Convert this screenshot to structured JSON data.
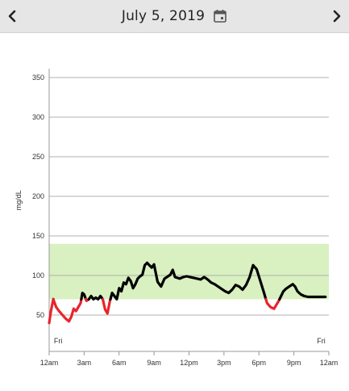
{
  "header": {
    "date": "July 5, 2019",
    "prev_icon": "chevron-left-icon",
    "next_icon": "chevron-right-icon",
    "calendar_icon": "calendar-icon"
  },
  "colors": {
    "header_bg": "#e6e6e6",
    "target_band": "#d9f0c0",
    "line_normal": "#000000",
    "line_low": "#e8242b",
    "grid": "#b0b0b0"
  },
  "chart_data": {
    "type": "line",
    "ylabel": "mg/dL",
    "ylim": [
      0,
      360
    ],
    "yticks": [
      50,
      100,
      150,
      200,
      250,
      300,
      350
    ],
    "target_range": [
      70,
      140
    ],
    "low_threshold": 70,
    "xlim": [
      0,
      24
    ],
    "xticks": [
      0,
      3,
      6,
      9,
      12,
      15,
      18,
      21,
      24
    ],
    "xtick_labels": [
      "12am",
      "3am",
      "6am",
      "9am",
      "12pm",
      "3pm",
      "6pm",
      "9pm",
      "12am"
    ],
    "day_labels": [
      {
        "x": 0.2,
        "text": "Fri"
      },
      {
        "x": 23.5,
        "text": "Fri"
      }
    ],
    "series": [
      {
        "x": [
          0.0,
          0.15,
          0.35,
          0.6,
          0.85,
          1.15,
          1.45,
          1.7,
          1.9,
          2.1,
          2.3,
          2.5,
          2.7,
          2.85,
          3.0,
          3.2,
          3.4,
          3.6,
          3.8,
          4.0,
          4.2,
          4.4,
          4.6,
          4.8,
          5.0,
          5.2,
          5.4,
          5.6,
          5.8,
          6.0,
          6.2,
          6.4,
          6.6,
          6.8,
          7.0,
          7.2,
          7.4,
          7.6,
          7.8,
          8.0,
          8.2,
          8.4,
          8.6,
          8.8,
          9.0,
          9.3,
          9.6,
          9.9,
          10.2,
          10.4,
          10.6,
          10.8,
          11.0,
          11.2,
          11.5,
          11.8,
          12.1,
          12.4,
          12.7,
          13.0,
          13.3,
          13.6,
          13.9,
          14.2,
          14.5,
          14.8,
          15.1,
          15.4,
          15.7,
          16.0,
          16.3,
          16.6,
          16.9,
          17.2,
          17.5,
          17.8,
          18.1,
          18.4,
          18.7,
          19.0,
          19.3,
          19.5,
          19.7,
          19.9,
          20.1,
          20.3,
          20.6,
          20.9,
          21.1,
          21.3,
          21.6,
          21.9,
          22.2,
          22.5,
          22.8,
          23.0,
          23.2,
          23.4,
          23.7
        ],
        "y": [
          40,
          55,
          70,
          60,
          55,
          50,
          45,
          42,
          48,
          58,
          55,
          60,
          65,
          78,
          76,
          68,
          70,
          74,
          70,
          72,
          70,
          74,
          70,
          57,
          52,
          67,
          78,
          74,
          70,
          84,
          80,
          91,
          89,
          97,
          93,
          84,
          89,
          96,
          99,
          101,
          113,
          116,
          113,
          110,
          114,
          92,
          86,
          96,
          99,
          101,
          107,
          98,
          97,
          96,
          98,
          99,
          98,
          97,
          96,
          95,
          98,
          95,
          91,
          89,
          86,
          83,
          80,
          78,
          82,
          88,
          86,
          82,
          88,
          98,
          113,
          108,
          94,
          80,
          65,
          60,
          58,
          63,
          68,
          74,
          80,
          83,
          86,
          89,
          86,
          80,
          76,
          74,
          73,
          73,
          73,
          73,
          73,
          73,
          73
        ]
      }
    ]
  }
}
